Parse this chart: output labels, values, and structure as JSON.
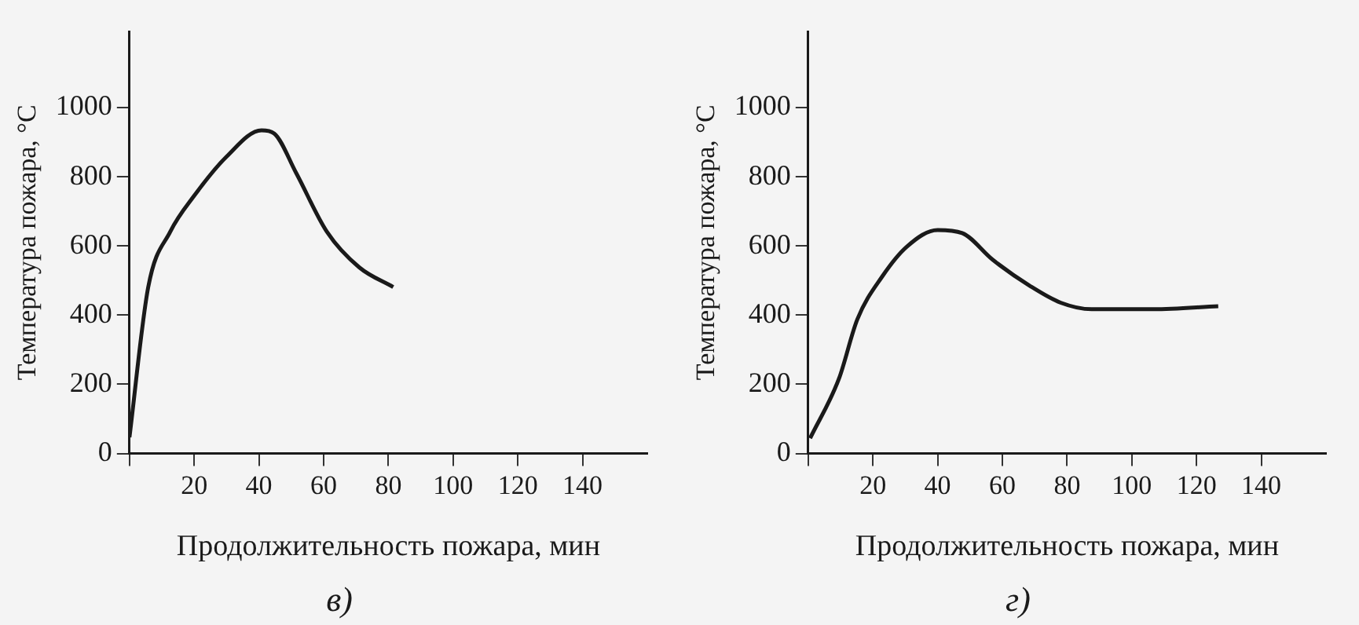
{
  "chart_data": [
    {
      "type": "line",
      "xlabel": "Продолжительность пожара, мин",
      "ylabel": "Температура пожара, °С",
      "annotations": [
        "в)"
      ],
      "x": [
        0,
        5.8,
        12.6,
        20,
        30,
        40.8,
        44.7,
        51.5,
        61,
        71,
        81.5
      ],
      "series": [
        {
          "color": "#1a1a1a",
          "values": [
            47,
            481,
            641,
            745,
            858,
            934,
            925,
            811,
            641,
            538,
            481
          ]
        }
      ],
      "xlim": [
        0,
        160
      ],
      "xticks": [
        {
          "value": 0,
          "label": null
        },
        20,
        40,
        60,
        80,
        100,
        120,
        140
      ],
      "ylim": [
        0,
        1220
      ],
      "yticks": [
        0,
        200,
        400,
        600,
        800,
        1000
      ],
      "grid": false,
      "legend": false,
      "marker": "none",
      "line_style": "solid"
    },
    {
      "type": "line",
      "xlabel": "Продолжительность пожара, мин",
      "ylabel": "Температура пожара, °С",
      "annotations": [
        "г)"
      ],
      "x": [
        0.6,
        9.5,
        15.2,
        22.9,
        30.5,
        40,
        47.6,
        57,
        68.6,
        78,
        87.6,
        106.7,
        126.7
      ],
      "series": [
        {
          "color": "#1a1a1a",
          "values": [
            44,
            216,
            388,
            512,
            598,
            646,
            637,
            560,
            484,
            436,
            417,
            417,
            426
          ]
        }
      ],
      "xlim": [
        0,
        160
      ],
      "xticks": [
        {
          "value": 0,
          "label": null
        },
        20,
        40,
        60,
        80,
        100,
        120,
        140
      ],
      "ylim": [
        0,
        1220
      ],
      "yticks": [
        0,
        200,
        400,
        600,
        800,
        1000
      ],
      "grid": false,
      "legend": false,
      "marker": "none",
      "line_style": "solid"
    }
  ]
}
